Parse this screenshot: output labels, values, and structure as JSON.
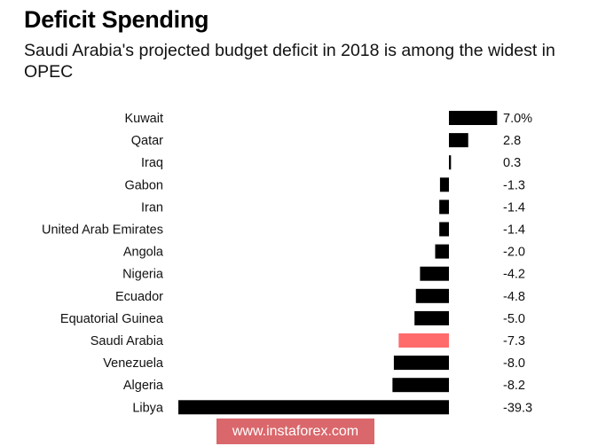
{
  "chart_data": {
    "type": "bar",
    "orientation": "horizontal",
    "title": "Deficit Spending",
    "subtitle": "Saudi Arabia's projected budget deficit in 2018 is among the widest in OPEC",
    "xlabel": "",
    "ylabel": "",
    "unit": "%",
    "grid": false,
    "categories": [
      "Kuwait",
      "Qatar",
      "Iraq",
      "Gabon",
      "Iran",
      "United Arab Emirates",
      "Angola",
      "Nigeria",
      "Ecuador",
      "Equatorial Guinea",
      "Saudi Arabia",
      "Venezuela",
      "Algeria",
      "Libya"
    ],
    "values": [
      7.0,
      2.8,
      0.3,
      -1.3,
      -1.4,
      -1.4,
      -2.0,
      -4.2,
      -4.8,
      -5.0,
      -7.3,
      -8.0,
      -8.2,
      -39.3
    ],
    "value_labels": [
      "7.0%",
      "2.8",
      "0.3",
      "-1.3",
      "-1.4",
      "-1.4",
      "-2.0",
      "-4.2",
      "-4.8",
      "-5.0",
      "-7.3",
      "-8.0",
      "-8.2",
      "-39.3"
    ],
    "highlight": "Saudi Arabia",
    "colors": {
      "default": "#000000",
      "highlight": "#ff6b6b"
    },
    "xlim": [
      -39.3,
      7.0
    ]
  },
  "watermark": "www.instaforex.com"
}
